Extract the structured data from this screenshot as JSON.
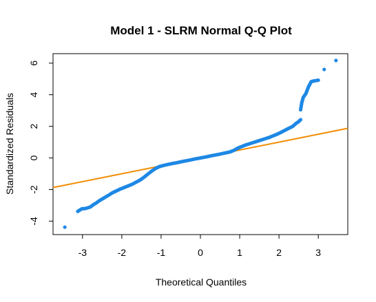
{
  "chart_data": {
    "type": "scatter",
    "title": "Model 1 - SLRM Normal Q-Q Plot",
    "xlabel": "Theoretical Quantiles",
    "ylabel": "Standardized Residuals",
    "xlim": [
      -3.75,
      3.75
    ],
    "ylim": [
      -4.85,
      6.6
    ],
    "xticks": [
      -3,
      -2,
      -1,
      0,
      1,
      2,
      3
    ],
    "yticks": [
      -4,
      -2,
      0,
      2,
      4,
      6
    ],
    "grid": false,
    "legend": "none",
    "point_color": "#1e88e5",
    "line_color": "#f28c00",
    "reference_line": {
      "intercept": 0.0,
      "slope": 0.5
    },
    "points": [
      {
        "x": -3.45,
        "y": -4.38
      },
      {
        "x": -3.12,
        "y": -3.38
      },
      {
        "x": -3.02,
        "y": -3.22
      },
      {
        "x": -2.93,
        "y": -3.2
      },
      {
        "x": -2.86,
        "y": -3.15
      },
      {
        "x": -2.8,
        "y": -3.1
      },
      {
        "x": -2.72,
        "y": -2.95
      },
      {
        "x": -2.65,
        "y": -2.85
      },
      {
        "x": -2.58,
        "y": -2.72
      },
      {
        "x": -2.5,
        "y": -2.6
      },
      {
        "x": -2.42,
        "y": -2.48
      },
      {
        "x": -2.33,
        "y": -2.35
      },
      {
        "x": -2.25,
        "y": -2.22
      },
      {
        "x": -2.15,
        "y": -2.1
      },
      {
        "x": -2.05,
        "y": -1.98
      },
      {
        "x": -1.95,
        "y": -1.88
      },
      {
        "x": -1.85,
        "y": -1.78
      },
      {
        "x": -1.75,
        "y": -1.68
      },
      {
        "x": -1.65,
        "y": -1.55
      },
      {
        "x": -1.55,
        "y": -1.42
      },
      {
        "x": -1.45,
        "y": -1.25
      },
      {
        "x": -1.35,
        "y": -1.05
      },
      {
        "x": -1.25,
        "y": -0.85
      },
      {
        "x": -1.15,
        "y": -0.68
      },
      {
        "x": -1.05,
        "y": -0.55
      },
      {
        "x": -0.9,
        "y": -0.45
      },
      {
        "x": -0.75,
        "y": -0.37
      },
      {
        "x": -0.6,
        "y": -0.3
      },
      {
        "x": -0.45,
        "y": -0.22
      },
      {
        "x": -0.3,
        "y": -0.15
      },
      {
        "x": -0.15,
        "y": -0.07
      },
      {
        "x": 0.0,
        "y": 0.0
      },
      {
        "x": 0.15,
        "y": 0.07
      },
      {
        "x": 0.3,
        "y": 0.15
      },
      {
        "x": 0.45,
        "y": 0.22
      },
      {
        "x": 0.6,
        "y": 0.3
      },
      {
        "x": 0.75,
        "y": 0.38
      },
      {
        "x": 0.85,
        "y": 0.48
      },
      {
        "x": 0.95,
        "y": 0.62
      },
      {
        "x": 1.05,
        "y": 0.72
      },
      {
        "x": 1.15,
        "y": 0.82
      },
      {
        "x": 1.25,
        "y": 0.9
      },
      {
        "x": 1.35,
        "y": 0.98
      },
      {
        "x": 1.45,
        "y": 1.06
      },
      {
        "x": 1.55,
        "y": 1.14
      },
      {
        "x": 1.65,
        "y": 1.22
      },
      {
        "x": 1.75,
        "y": 1.3
      },
      {
        "x": 1.85,
        "y": 1.4
      },
      {
        "x": 1.95,
        "y": 1.5
      },
      {
        "x": 2.05,
        "y": 1.62
      },
      {
        "x": 2.15,
        "y": 1.75
      },
      {
        "x": 2.25,
        "y": 1.88
      },
      {
        "x": 2.35,
        "y": 2.0
      },
      {
        "x": 2.43,
        "y": 2.18
      },
      {
        "x": 2.5,
        "y": 2.3
      },
      {
        "x": 2.55,
        "y": 2.42
      },
      {
        "x": 2.55,
        "y": 3.05
      },
      {
        "x": 2.58,
        "y": 3.5
      },
      {
        "x": 2.62,
        "y": 3.85
      },
      {
        "x": 2.68,
        "y": 4.05
      },
      {
        "x": 2.75,
        "y": 4.5
      },
      {
        "x": 2.82,
        "y": 4.83
      },
      {
        "x": 2.9,
        "y": 4.88
      },
      {
        "x": 3.0,
        "y": 4.92
      },
      {
        "x": 3.15,
        "y": 5.6
      },
      {
        "x": 3.45,
        "y": 6.17
      }
    ]
  }
}
